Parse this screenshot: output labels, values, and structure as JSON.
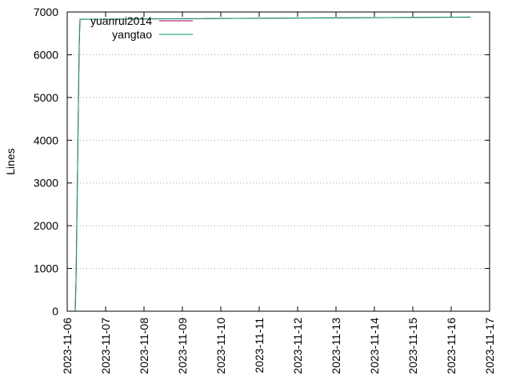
{
  "chart_data": {
    "type": "line",
    "title": "",
    "xlabel": "",
    "ylabel": "Lines",
    "x_type": "date",
    "xlim": [
      "2023-11-06",
      "2023-11-17"
    ],
    "ylim": [
      0,
      7000
    ],
    "x_ticks": [
      "2023-11-06",
      "2023-11-07",
      "2023-11-08",
      "2023-11-09",
      "2023-11-10",
      "2023-11-11",
      "2023-11-12",
      "2023-11-13",
      "2023-11-14",
      "2023-11-15",
      "2023-11-16",
      "2023-11-17"
    ],
    "y_ticks": [
      0,
      1000,
      2000,
      3000,
      4000,
      5000,
      6000,
      7000
    ],
    "grid": "horizontal dotted",
    "legend_position": "top-left",
    "series": [
      {
        "name": "yuanrui2014",
        "color": "#990066",
        "points": [
          [
            "2023-11-06T05:00",
            0
          ],
          [
            "2023-11-06T05:30",
            700
          ],
          [
            "2023-11-06T06:30",
            3400
          ],
          [
            "2023-11-06T07:30",
            6200
          ],
          [
            "2023-11-06T08:00",
            6830
          ],
          [
            "2023-11-16T12:00",
            6880
          ]
        ]
      },
      {
        "name": "yangtao",
        "color": "#009966",
        "points": [
          [
            "2023-11-06T05:00",
            0
          ],
          [
            "2023-11-06T05:30",
            700
          ],
          [
            "2023-11-06T06:30",
            3400
          ],
          [
            "2023-11-06T07:30",
            6200
          ],
          [
            "2023-11-06T08:00",
            6830
          ],
          [
            "2023-11-16T12:00",
            6880
          ]
        ]
      }
    ]
  }
}
